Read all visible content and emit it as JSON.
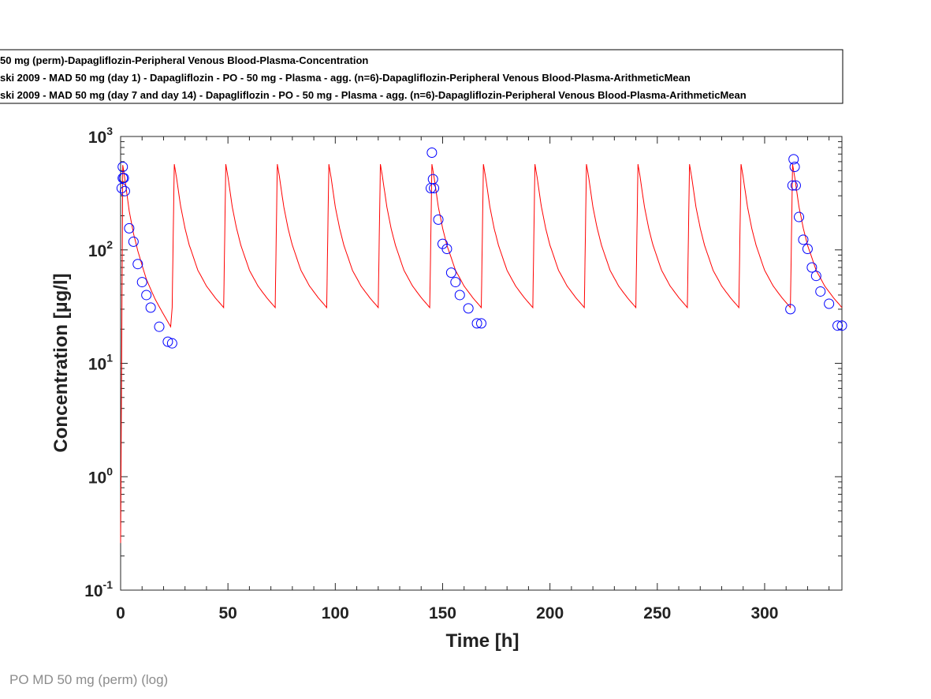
{
  "chart_data": {
    "type": "scatter",
    "xlabel": "Time [h]",
    "ylabel": "Concentration [µg/l]",
    "xlim": [
      0,
      336
    ],
    "ylim": [
      0.1,
      1000
    ],
    "yscale": "log",
    "xticks": [
      0,
      50,
      100,
      150,
      200,
      250,
      300
    ],
    "yticks": [
      {
        "value": 0.1,
        "base": "10",
        "exp": "-1"
      },
      {
        "value": 1,
        "base": "10",
        "exp": "0"
      },
      {
        "value": 10,
        "base": "10",
        "exp": "1"
      },
      {
        "value": 100,
        "base": "10",
        "exp": "2"
      },
      {
        "value": 1000,
        "base": "10",
        "exp": "3"
      }
    ],
    "grid": false,
    "legend_position": "top",
    "legend": [
      "50 mg (perm)-Dapagliflozin-Peripheral Venous Blood-Plasma-Concentration",
      "ski 2009 - MAD 50 mg (day 1) - Dapagliflozin - PO - 50 mg - Plasma - agg. (n=6)-Dapagliflozin-Peripheral Venous Blood-Plasma-ArithmeticMean",
      "ski 2009 - MAD 50 mg (day 7 and day 14) - Dapagliflozin - PO - 50 mg - Plasma - agg. (n=6)-Dapagliflozin-Peripheral Venous Blood-Plasma-ArithmeticMean"
    ],
    "series": [
      {
        "type": "line",
        "color": "#ff0000",
        "dose_interval_h": 24,
        "n_doses": 14,
        "x": [
          0,
          1,
          2,
          4,
          6,
          8,
          12,
          16,
          20,
          24
        ],
        "y_first_interval": [
          0.26,
          560,
          420,
          220,
          140,
          98,
          55,
          37,
          27,
          20
        ],
        "y_steady_interval": [
          31,
          570,
          440,
          240,
          155,
          110,
          66,
          48,
          38,
          31
        ]
      },
      {
        "type": "scatter",
        "color": "#0000ff",
        "x": [
          0.5,
          1,
          1,
          1.5,
          2,
          4,
          6,
          8,
          10,
          12,
          14,
          18,
          22,
          24
        ],
        "y": [
          350,
          540,
          430,
          430,
          330,
          155,
          118,
          75,
          52,
          40,
          31,
          21,
          15.5,
          15
        ]
      },
      {
        "type": "scatter",
        "color": "#0000ff",
        "x": [
          144.5,
          145,
          145.5,
          146,
          148,
          150,
          152,
          154,
          156,
          158,
          162,
          166,
          168,
          312,
          313,
          313.5,
          314,
          314.5,
          316,
          318,
          320,
          322,
          324,
          326,
          330,
          334,
          336
        ],
        "y": [
          350,
          720,
          420,
          350,
          185,
          113,
          102,
          63,
          52,
          40,
          30.5,
          22.5,
          22.5,
          30,
          370,
          630,
          540,
          370,
          195,
          123,
          102,
          70,
          59,
          43,
          33.5,
          21.5,
          21.5
        ]
      }
    ]
  },
  "footer": "PO MD 50 mg (perm) (log)"
}
